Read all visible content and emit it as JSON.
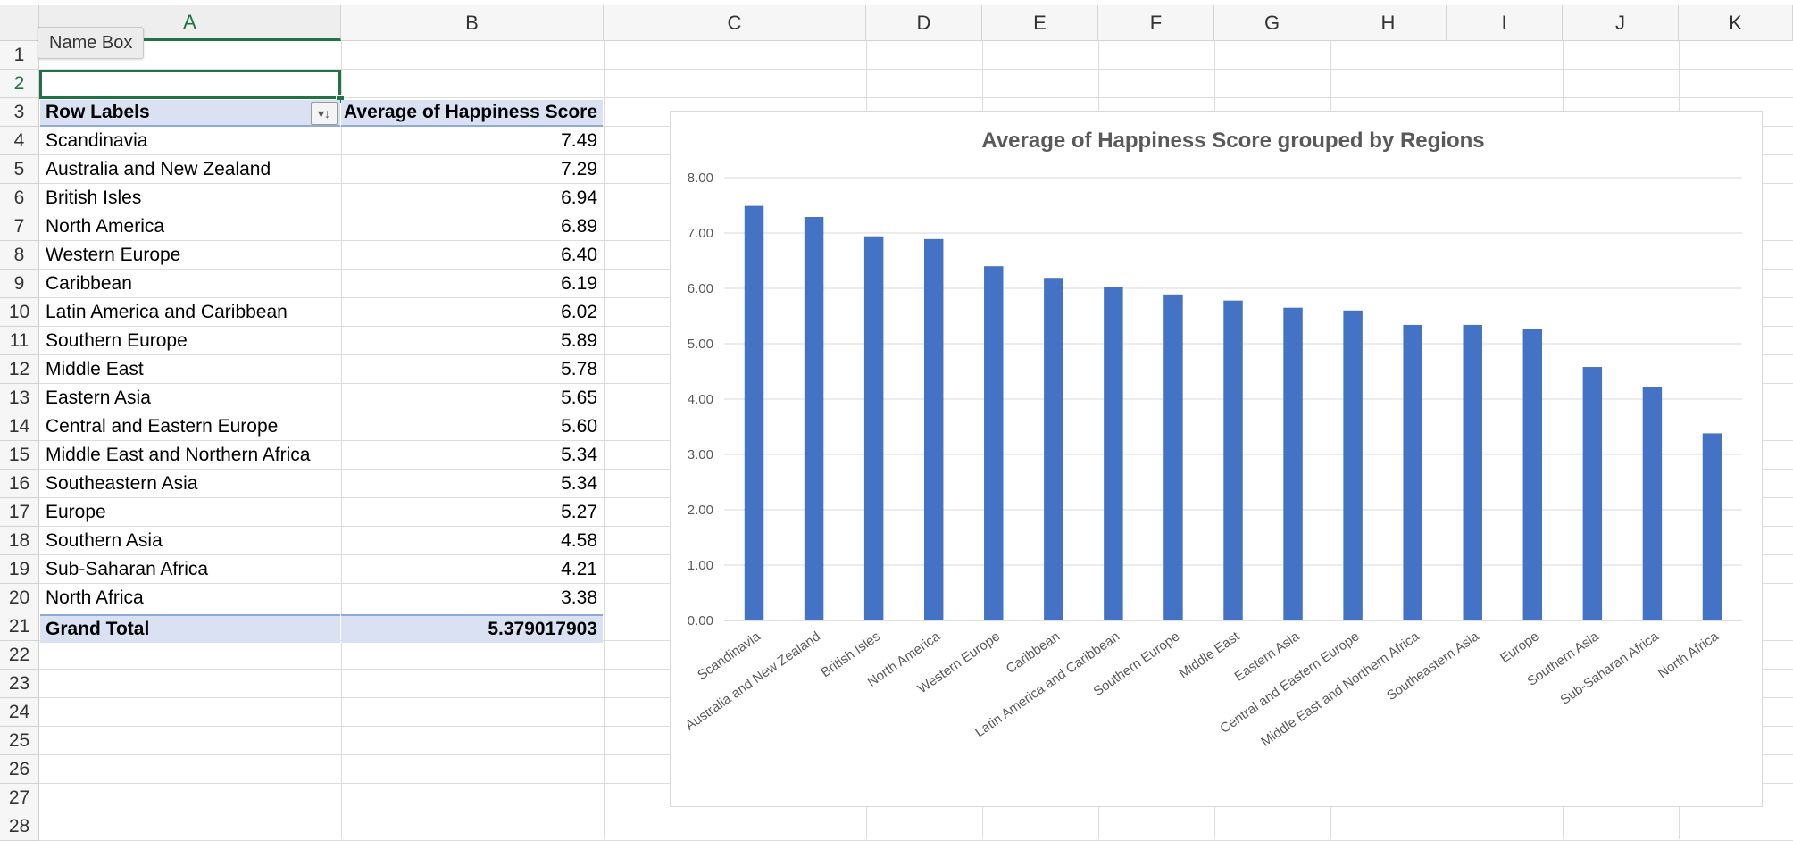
{
  "namebox": {
    "label": "Name Box"
  },
  "columns": [
    "A",
    "B",
    "C",
    "D",
    "E",
    "F",
    "G",
    "H",
    "I",
    "J",
    "K"
  ],
  "rows": [
    "1",
    "2",
    "3",
    "4",
    "5",
    "6",
    "7",
    "8",
    "9",
    "10",
    "11",
    "12",
    "13",
    "14",
    "15",
    "16",
    "17",
    "18",
    "19",
    "20",
    "21",
    "22",
    "23",
    "24",
    "25",
    "26",
    "27",
    "28"
  ],
  "pivot": {
    "header_row_labels": "Row Labels",
    "header_value": "Average of Happiness Score",
    "filter_icon": "sort-filter-icon",
    "rows": [
      {
        "label": "Scandinavia",
        "value": "7.49"
      },
      {
        "label": "Australia and New Zealand",
        "value": "7.29"
      },
      {
        "label": "British Isles",
        "value": "6.94"
      },
      {
        "label": "North America",
        "value": "6.89"
      },
      {
        "label": "Western Europe",
        "value": "6.40"
      },
      {
        "label": "Caribbean",
        "value": "6.19"
      },
      {
        "label": "Latin America and Caribbean",
        "value": "6.02"
      },
      {
        "label": "Southern Europe",
        "value": "5.89"
      },
      {
        "label": "Middle East",
        "value": "5.78"
      },
      {
        "label": "Eastern Asia",
        "value": "5.65"
      },
      {
        "label": "Central and Eastern Europe",
        "value": "5.60"
      },
      {
        "label": "Middle East and Northern Africa",
        "value": "5.34"
      },
      {
        "label": "Southeastern Asia",
        "value": "5.34"
      },
      {
        "label": "Europe",
        "value": "5.27"
      },
      {
        "label": "Southern Asia",
        "value": "4.58"
      },
      {
        "label": "Sub-Saharan Africa",
        "value": "4.21"
      },
      {
        "label": "North Africa",
        "value": "3.38"
      }
    ],
    "total_label": "Grand Total",
    "total_value": "5.379017903"
  },
  "colors": {
    "bar": "#4472c4",
    "accent": "#217346",
    "pivot_header": "#d9e1f2"
  },
  "chart_data": {
    "type": "bar",
    "title": "Average of Happiness Score grouped by Regions",
    "xlabel": "",
    "ylabel": "",
    "categories": [
      "Scandinavia",
      "Australia and New Zealand",
      "British Isles",
      "North America",
      "Western Europe",
      "Caribbean",
      "Latin America and Caribbean",
      "Southern Europe",
      "Middle East",
      "Eastern Asia",
      "Central and Eastern Europe",
      "Middle East and Northern Africa",
      "Southeastern Asia",
      "Europe",
      "Southern Asia",
      "Sub-Saharan Africa",
      "North Africa"
    ],
    "values": [
      7.49,
      7.29,
      6.94,
      6.89,
      6.4,
      6.19,
      6.02,
      5.89,
      5.78,
      5.65,
      5.6,
      5.34,
      5.34,
      5.27,
      4.58,
      4.21,
      3.38
    ],
    "ylim": [
      0,
      8
    ],
    "yticks": [
      "0.00",
      "1.00",
      "2.00",
      "3.00",
      "4.00",
      "5.00",
      "6.00",
      "7.00",
      "8.00"
    ],
    "grid": true,
    "legend": "none"
  }
}
